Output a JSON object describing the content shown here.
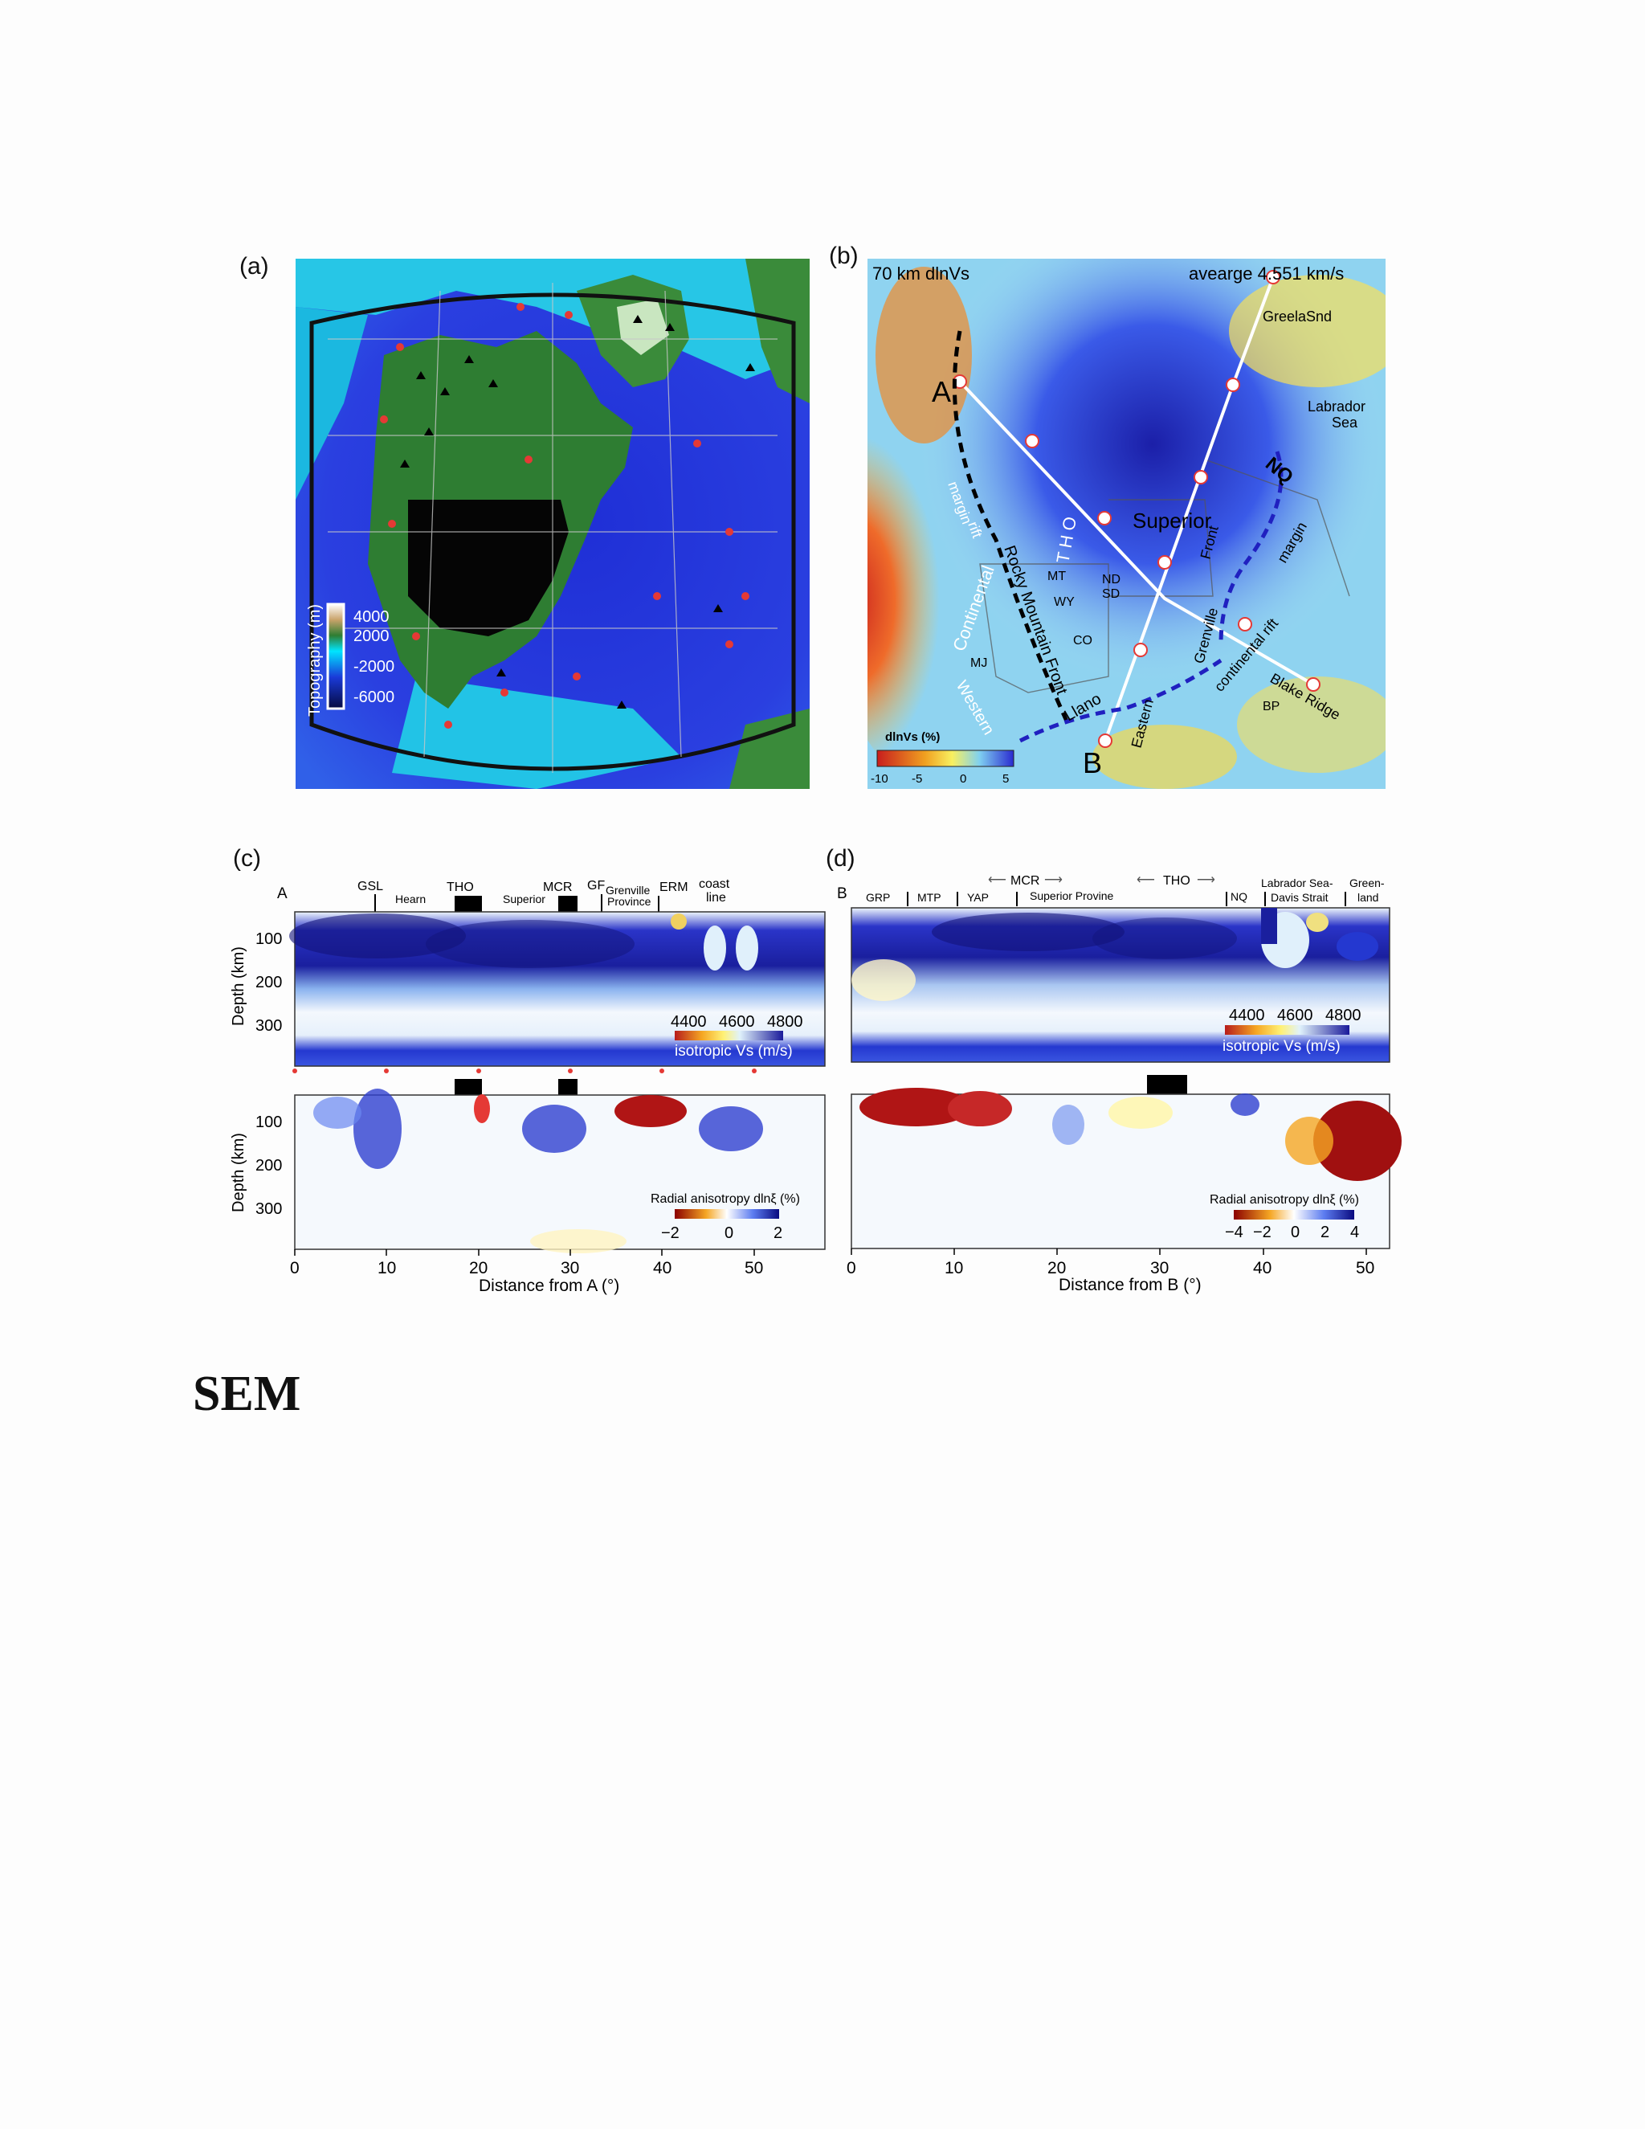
{
  "figure": {
    "panel_a": {
      "label": "(a)",
      "colorbar_title": "Topography (m)",
      "colorbar_ticks": [
        "4000",
        "2000",
        "-2000",
        "-6000"
      ]
    },
    "panel_b": {
      "label": "(b)",
      "title_left": "70 km dlnVs",
      "title_right": "avearge 4.551 km/s",
      "colorbar_title": "dlnVs (%)",
      "colorbar_ticks": [
        "-10",
        "-5",
        "0",
        "5"
      ],
      "point_a": "A",
      "point_b": "B",
      "labels": {
        "greenland": "GreelaSnd",
        "labrador": "Labrador",
        "sea": "Sea",
        "nq": "NQ",
        "superior": "Superior",
        "tho": "T H O",
        "trans_margin": "margin",
        "rift": "rift",
        "rocky": "Rocky Mountain Front",
        "mt": "MT",
        "wy": "WY",
        "nd": "ND",
        "sd": "SD",
        "co": "CO",
        "continental": "Continental",
        "mj": "MJ",
        "western": "Western",
        "llano": "Llano",
        "eastern": "Eastern",
        "grenville": "Grenville",
        "front": "Front",
        "margin2": "margin",
        "cont_rift": "continental rift",
        "blake": "Blake Ridge",
        "bp": "BP"
      }
    },
    "panel_c": {
      "label": "(c)",
      "start": "A",
      "xlabel": "Distance from A (°)",
      "xticks": [
        "0",
        "10",
        "20",
        "30",
        "40",
        "50"
      ],
      "ylabel": "Depth (km)",
      "yticks": [
        "100",
        "200",
        "300"
      ],
      "provinces": [
        "GSL",
        "Hearn",
        "THO",
        "Superior",
        "MCR",
        "GF",
        "Grenville",
        "Province",
        "ERM",
        "coast",
        "line"
      ],
      "vs_ticks": [
        "4400",
        "4600",
        "4800"
      ],
      "vs_title": "isotropic Vs (m/s)",
      "aniso_title": "Radial anisotropy dlnξ (%)",
      "aniso_ticks": [
        "−2",
        "0",
        "2"
      ]
    },
    "panel_d": {
      "label": "(d)",
      "start": "B",
      "xlabel": "Distance from B (°)",
      "xticks": [
        "0",
        "10",
        "20",
        "30",
        "40",
        "50"
      ],
      "mcr": "MCR",
      "tho": "THO",
      "provinces": [
        "GRP",
        "MTP",
        "YAP",
        "Superior Provine",
        "NQ",
        "Labrador Sea-",
        "Davis Strait",
        "Green-",
        "land"
      ],
      "vs_ticks": [
        "4400",
        "4600",
        "4800"
      ],
      "vs_title": "isotropic Vs (m/s)",
      "aniso_title": "Radial anisotropy dlnξ (%)",
      "aniso_ticks": [
        "−4",
        "−2",
        "0",
        "2",
        "4"
      ]
    }
  },
  "section_heading": "SEM"
}
